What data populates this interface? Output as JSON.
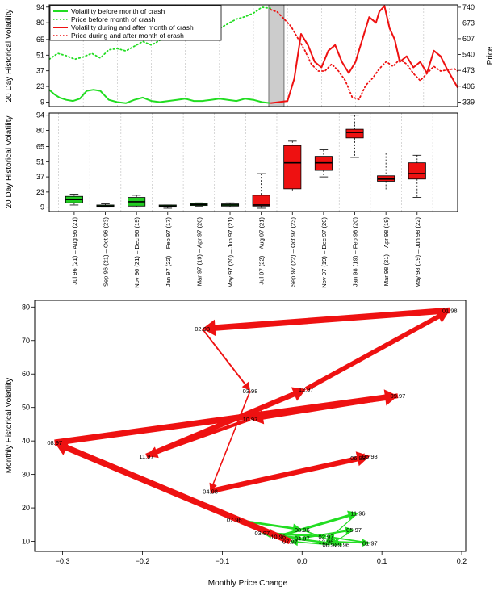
{
  "colors": {
    "before": "#22dd22",
    "during": "#ee1111",
    "box_before": "#22cc22",
    "box_during": "#ee1111",
    "crash_band": "#cccccc"
  },
  "chart_data": [
    {
      "type": "line",
      "name": "volatility-and-price-timeseries",
      "ylabel_left": "20 Day Historical Volatility",
      "ylabel_right": "Price",
      "y_left_ticks": [
        9,
        23,
        37,
        51,
        65,
        80,
        94
      ],
      "y_right_ticks": [
        339,
        406,
        473,
        540,
        607,
        673,
        740
      ],
      "ylim_left": [
        5,
        96
      ],
      "ylim_right": [
        320,
        750
      ],
      "x_range": [
        0,
        24
      ],
      "crash_band": [
        12.9,
        13.8
      ],
      "legend": [
        {
          "label": "Volatility before month of crash",
          "style": "solid",
          "series": "before"
        },
        {
          "label": "Price before month of crash",
          "style": "dotted",
          "series": "before"
        },
        {
          "label": "Volatility during and after month of crash",
          "style": "solid",
          "series": "during"
        },
        {
          "label": "Price during and after month of crash",
          "style": "dotted",
          "series": "during"
        }
      ],
      "series": [
        {
          "name": "Volatility before month of crash",
          "axis": "left",
          "style": "solid",
          "color": "before",
          "x": [
            0,
            0.3,
            0.6,
            1.0,
            1.4,
            1.8,
            2.2,
            2.6,
            3.0,
            3.5,
            4.0,
            4.5,
            5.0,
            5.5,
            6.0,
            6.5,
            7.0,
            7.5,
            8.0,
            8.5,
            9.0,
            9.5,
            10.0,
            10.5,
            11.0,
            11.5,
            12.0,
            12.5,
            13.0
          ],
          "y": [
            20,
            16,
            13,
            11,
            10,
            12,
            19,
            20,
            19,
            11,
            9,
            8,
            11,
            13,
            10,
            9,
            10,
            11,
            12,
            10,
            10,
            11,
            12,
            11,
            10,
            12,
            11,
            9,
            8
          ]
        },
        {
          "name": "Price before month of crash",
          "axis": "right",
          "style": "dotted",
          "color": "before",
          "x": [
            0,
            0.5,
            1.0,
            1.5,
            2.0,
            2.5,
            3.0,
            3.5,
            4.0,
            4.5,
            5.0,
            5.5,
            6.0,
            6.5,
            7.0,
            7.5,
            8.0,
            8.5,
            9.0,
            9.5,
            10.0,
            10.5,
            11.0,
            11.5,
            12.0,
            12.5,
            13.0
          ],
          "y": [
            520,
            545,
            535,
            520,
            530,
            545,
            525,
            560,
            565,
            555,
            575,
            595,
            580,
            600,
            620,
            615,
            635,
            650,
            645,
            660,
            650,
            670,
            690,
            700,
            715,
            740,
            735
          ]
        },
        {
          "name": "Volatility during and after month of crash",
          "axis": "left",
          "style": "solid",
          "color": "during",
          "x": [
            13.0,
            13.5,
            14.0,
            14.4,
            14.8,
            15.2,
            15.6,
            16.0,
            16.4,
            16.8,
            17.2,
            17.6,
            18.0,
            18.4,
            18.8,
            19.2,
            19.4,
            19.7,
            20.0,
            20.3,
            20.6,
            21.0,
            21.4,
            21.8,
            22.2,
            22.6,
            23.0,
            23.4,
            23.7,
            24.0
          ],
          "y": [
            8,
            9,
            10,
            30,
            70,
            60,
            45,
            40,
            55,
            60,
            45,
            35,
            45,
            65,
            85,
            80,
            90,
            95,
            75,
            65,
            45,
            50,
            40,
            45,
            35,
            55,
            50,
            38,
            30,
            22
          ]
        },
        {
          "name": "Price during and after month of crash",
          "axis": "right",
          "style": "dotted",
          "color": "during",
          "x": [
            13.0,
            13.4,
            13.8,
            14.2,
            14.6,
            15.0,
            15.4,
            15.8,
            16.2,
            16.6,
            17.0,
            17.4,
            17.8,
            18.2,
            18.6,
            19.0,
            19.4,
            19.8,
            20.2,
            20.6,
            21.0,
            21.4,
            21.8,
            22.2,
            22.6,
            23.0,
            23.4,
            23.8,
            24.0
          ],
          "y": [
            730,
            720,
            690,
            660,
            610,
            560,
            500,
            470,
            470,
            500,
            470,
            430,
            360,
            350,
            410,
            440,
            480,
            510,
            490,
            520,
            500,
            460,
            430,
            460,
            490,
            470,
            475,
            480,
            470
          ]
        }
      ]
    },
    {
      "type": "boxplot",
      "name": "monthly-volatility-boxplots",
      "ylabel": "20 Day Historical Volatility",
      "y_ticks": [
        9,
        23,
        37,
        51,
        65,
        80,
        94
      ],
      "ylim": [
        5,
        96
      ],
      "categories": [
        "Jul 96 (21) – Aug 96 (21)",
        "Sep 96 (21) – Oct 96 (23)",
        "Nov 96 (21) – Dec 96 (19)",
        "Jan 97 (22) – Feb 97 (17)",
        "Mar 97 (19) – Apr 97 (20)",
        "May 97 (20) – Jun 97 (21)",
        "Jul 97 (22) – Aug 97 (21)",
        "Sep 97 (22) – Oct 97 (23)",
        "Nov 97 (19) – Dec 97 (20)",
        "Jan 98 (19) – Feb 98 (20)",
        "Mar 98 (21) – Apr 98 (19)",
        "May 98 (19) – Jun 98 (22)"
      ],
      "boxes": [
        {
          "min": 11,
          "q1": 13,
          "median": 16,
          "q3": 19,
          "max": 21,
          "group": "before"
        },
        {
          "min": 9,
          "q1": 9,
          "median": 10,
          "q3": 11,
          "max": 12,
          "group": "before"
        },
        {
          "min": 9,
          "q1": 10,
          "median": 14,
          "q3": 18,
          "max": 20,
          "group": "before"
        },
        {
          "min": 8,
          "q1": 9,
          "median": 10,
          "q3": 11,
          "max": 11,
          "group": "before"
        },
        {
          "min": 10,
          "q1": 10.5,
          "median": 11.5,
          "q3": 12.5,
          "max": 13,
          "group": "before"
        },
        {
          "min": 9,
          "q1": 10,
          "median": 11,
          "q3": 12,
          "max": 13,
          "group": "before"
        },
        {
          "min": 8,
          "q1": 10,
          "median": 11,
          "q3": 20,
          "max": 40,
          "group": "during"
        },
        {
          "min": 24,
          "q1": 26,
          "median": 50,
          "q3": 66,
          "max": 70,
          "group": "during"
        },
        {
          "min": 37,
          "q1": 43,
          "median": 50,
          "q3": 56,
          "max": 62,
          "group": "during"
        },
        {
          "min": 55,
          "q1": 73,
          "median": 78,
          "q3": 81,
          "max": 94,
          "group": "during"
        },
        {
          "min": 24,
          "q1": 33,
          "median": 35,
          "q3": 38,
          "max": 59,
          "group": "during"
        },
        {
          "min": 18,
          "q1": 35,
          "median": 40,
          "q3": 50,
          "max": 57,
          "group": "during"
        }
      ]
    },
    {
      "type": "scatter",
      "name": "volatility-vs-price-change",
      "xlabel": "Monthly Price Change",
      "ylabel": "Monthly Historical Volatility",
      "x_ticks": [
        -0.3,
        -0.2,
        -0.1,
        0.0,
        0.1,
        0.2
      ],
      "x_tick_labels": [
        "−0.3",
        "−0.2",
        "−0.1",
        "0.0",
        "0.1",
        "0.2"
      ],
      "y_ticks": [
        10,
        20,
        30,
        40,
        50,
        60,
        70,
        80
      ],
      "xlim": [
        -0.335,
        0.205
      ],
      "ylim": [
        7,
        82
      ],
      "points": [
        {
          "label": "07.96",
          "x": -0.085,
          "y": 16.5
        },
        {
          "label": "08.96",
          "x": 0.0,
          "y": 13.5
        },
        {
          "label": "09.96",
          "x": 0.05,
          "y": 9.0
        },
        {
          "label": "10.96",
          "x": -0.03,
          "y": 11.5
        },
        {
          "label": "11.96",
          "x": 0.07,
          "y": 18.5
        },
        {
          "label": "12.96",
          "x": 0.03,
          "y": 10.0
        },
        {
          "label": "01.97",
          "x": 0.085,
          "y": 9.5
        },
        {
          "label": "02.97",
          "x": 0.03,
          "y": 11.5
        },
        {
          "label": "03.97",
          "x": -0.05,
          "y": 12.5
        },
        {
          "label": "04.97",
          "x": 0.0,
          "y": 11.0
        },
        {
          "label": "05.97",
          "x": 0.065,
          "y": 13.5
        },
        {
          "label": "06.97",
          "x": 0.035,
          "y": 9.0
        },
        {
          "label": "07.97",
          "x": -0.015,
          "y": 10.0
        },
        {
          "label": "08.97",
          "x": -0.31,
          "y": 39.5
        },
        {
          "label": "09.97",
          "x": 0.12,
          "y": 53.5
        },
        {
          "label": "10.97",
          "x": -0.065,
          "y": 46.5
        },
        {
          "label": "11.97",
          "x": -0.195,
          "y": 35.5
        },
        {
          "label": "12.97",
          "x": 0.005,
          "y": 55.5
        },
        {
          "label": "01.98",
          "x": 0.185,
          "y": 79.0
        },
        {
          "label": "02.98",
          "x": -0.125,
          "y": 73.5
        },
        {
          "label": "03.98",
          "x": -0.065,
          "y": 55.0
        },
        {
          "label": "04.98",
          "x": -0.115,
          "y": 25.0
        },
        {
          "label": "05.98",
          "x": 0.085,
          "y": 35.5
        },
        {
          "label": "06.98",
          "x": 0.07,
          "y": 35.0
        }
      ],
      "paths": [
        {
          "group": "before",
          "sequence": [
            "07.96",
            "08.96",
            "09.96",
            "10.96",
            "11.96",
            "12.96",
            "01.97",
            "02.97",
            "03.97",
            "04.97",
            "05.97",
            "06.97",
            "07.97"
          ]
        },
        {
          "group": "during",
          "sequence": [
            "07.97",
            "08.97",
            "09.97",
            "10.97",
            "11.97",
            "12.97",
            "01.98",
            "02.98",
            "03.98",
            "04.98",
            "05.98",
            "06.98"
          ]
        }
      ]
    }
  ]
}
